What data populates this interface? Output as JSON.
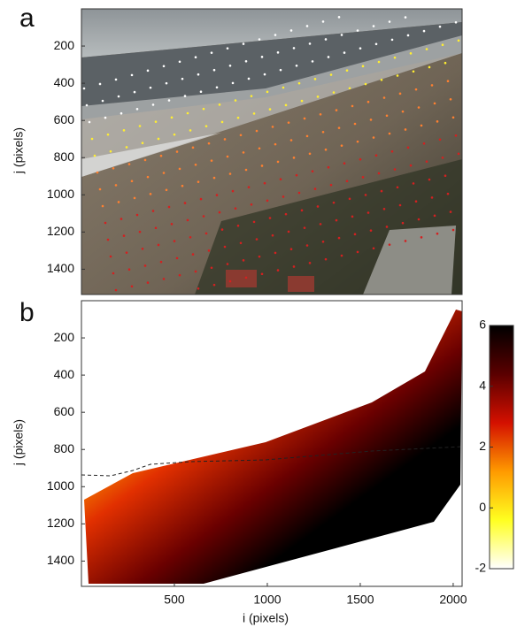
{
  "chart_data": [
    {
      "type": "image",
      "panel_label": "a",
      "ylabel": "j (pixels)",
      "xlim": [
        0,
        2048
      ],
      "ylim": [
        0,
        1536
      ],
      "yticks": [
        200,
        400,
        600,
        800,
        1000,
        1200,
        1400
      ]
    },
    {
      "type": "heatmap",
      "panel_label": "b",
      "ylabel": "j (pixels)",
      "xlabel": "i (pixels)",
      "xlim": [
        0,
        2048
      ],
      "ylim": [
        0,
        1536
      ],
      "yticks": [
        200,
        400,
        600,
        800,
        1000,
        1200,
        1400
      ],
      "xticks": [
        500,
        1000,
        1500,
        2000
      ],
      "clim": [
        -2,
        6
      ],
      "cticks": [
        -2,
        0,
        2,
        4,
        6
      ],
      "colormap": [
        "#ffffff",
        "#ffff20",
        "#ff9a00",
        "#d41000",
        "#5a0000",
        "#000000"
      ]
    }
  ]
}
